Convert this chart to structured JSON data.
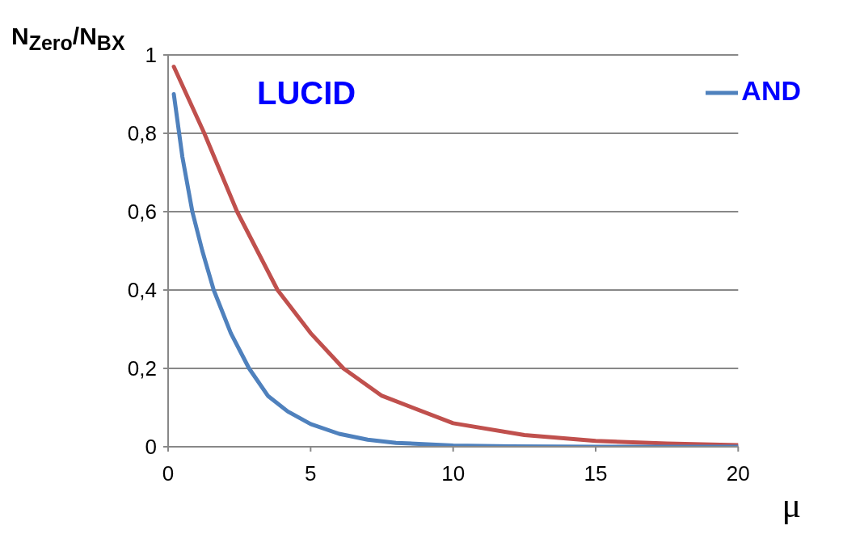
{
  "chart_data": {
    "type": "line",
    "ylabel": "N$_{Zero}$/N$_{BX}$",
    "xlabel": "μ",
    "annotations": [
      "LUCID"
    ],
    "xlim": [
      0,
      20
    ],
    "xticks": [
      0,
      5,
      10,
      15,
      20
    ],
    "ylim": [
      0,
      1
    ],
    "yticks": [
      {
        "value": 0,
        "label": "0"
      },
      {
        "value": 0.2,
        "label": "0,2"
      },
      {
        "value": 0.4,
        "label": "0,4"
      },
      {
        "value": 0.6,
        "label": "0,6"
      },
      {
        "value": 0.8,
        "label": "0,8"
      },
      {
        "value": 1,
        "label": "1"
      }
    ],
    "grid": "y",
    "legend": "top right",
    "marker": "none",
    "line_style": "solid",
    "series": [
      {
        "color": "#c0504d",
        "x": [
          0.2,
          1.27,
          2.42,
          3.84,
          5,
          6.15,
          7.5,
          10,
          12.5,
          15,
          17.5,
          20
        ],
        "values": [
          0.97,
          0.8,
          0.6,
          0.4,
          0.29,
          0.2,
          0.13,
          0.06,
          0.03,
          0.015,
          0.008,
          0.004
        ]
      },
      {
        "name": "AND",
        "color": "#4f81bd",
        "x": [
          0.2,
          0.5,
          0.85,
          1.2,
          1.6,
          2.2,
          2.84,
          3.5,
          4.2,
          5,
          6,
          7,
          8,
          10,
          12,
          15,
          20
        ],
        "values": [
          0.9,
          0.74,
          0.6,
          0.5,
          0.4,
          0.29,
          0.2,
          0.13,
          0.09,
          0.058,
          0.033,
          0.018,
          0.01,
          0.003,
          0.001,
          0,
          0
        ]
      }
    ]
  }
}
